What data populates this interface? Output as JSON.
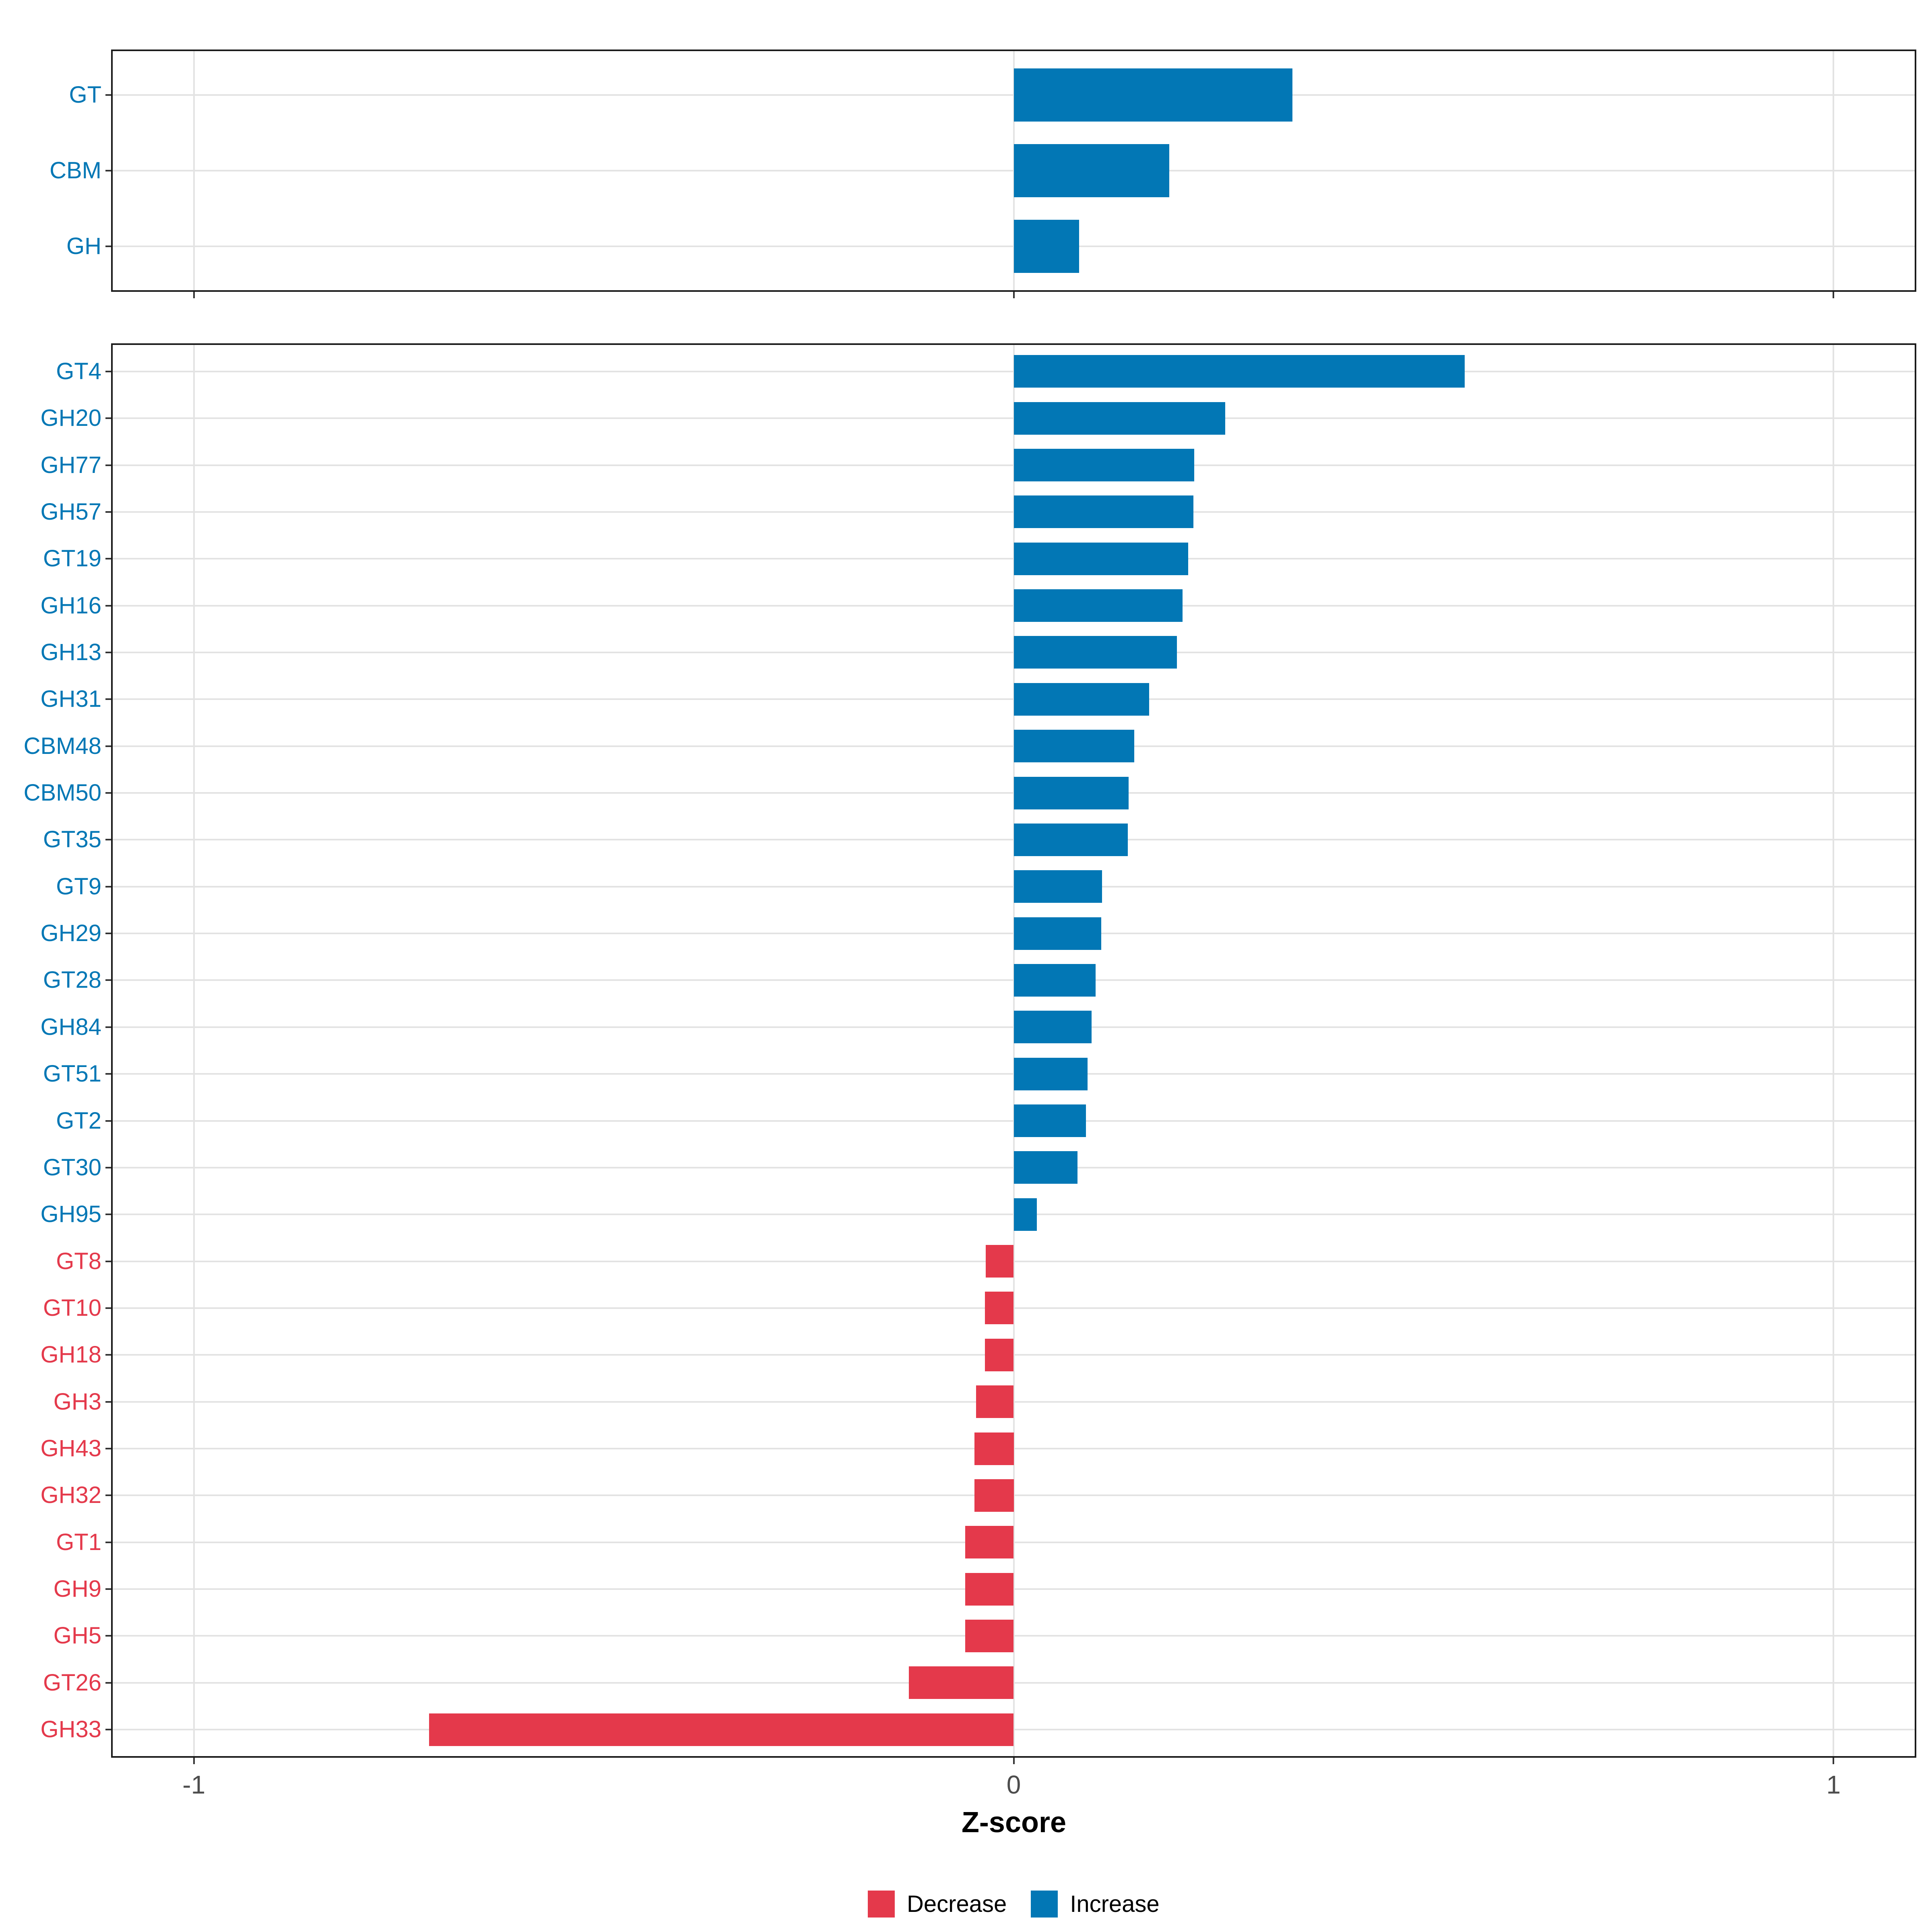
{
  "chart_data": [
    {
      "type": "bar",
      "orientation": "horizontal",
      "panel": "top",
      "title": "",
      "categories": [
        "GT",
        "CBM",
        "GH"
      ],
      "values": [
        0.34,
        0.19,
        0.08
      ],
      "xlim": [
        -1.1,
        1.1
      ],
      "grid": true
    },
    {
      "type": "bar",
      "orientation": "horizontal",
      "panel": "bottom",
      "title": "",
      "categories": [
        "GT4",
        "GH20",
        "GH77",
        "GH57",
        "GT19",
        "GH16",
        "GH13",
        "GH31",
        "CBM48",
        "CBM50",
        "GT35",
        "GT9",
        "GH29",
        "GT28",
        "GH84",
        "GT51",
        "GT2",
        "GT30",
        "GH95",
        "GT8",
        "GT10",
        "GH18",
        "GH3",
        "GH43",
        "GH32",
        "GT1",
        "GH9",
        "GH5",
        "GT26",
        "GH33"
      ],
      "values": [
        0.55,
        0.258,
        0.22,
        0.219,
        0.213,
        0.206,
        0.199,
        0.165,
        0.147,
        0.14,
        0.139,
        0.108,
        0.107,
        0.1,
        0.095,
        0.09,
        0.088,
        0.078,
        0.028,
        -0.034,
        -0.035,
        -0.035,
        -0.046,
        -0.048,
        -0.048,
        -0.059,
        -0.059,
        -0.059,
        -0.128,
        -0.713
      ],
      "xlim": [
        -1.1,
        1.1
      ],
      "grid": true
    }
  ],
  "axis": {
    "label": "Z-score",
    "ticks": [
      {
        "label": "-1",
        "value": -1
      },
      {
        "label": "0",
        "value": 0
      },
      {
        "label": "1",
        "value": 1
      }
    ]
  },
  "legend": {
    "position": "bottom",
    "items": [
      {
        "label": "Decrease",
        "key": "decrease"
      },
      {
        "label": "Increase",
        "key": "increase"
      }
    ]
  },
  "colors": {
    "increase": "#0277b5",
    "decrease": "#e4394b",
    "grid": "#e3e3e3",
    "panel_border": "#1a1a1a",
    "tick": "#333333",
    "tick_text": "#4d4d4d",
    "background": "#ffffff"
  }
}
